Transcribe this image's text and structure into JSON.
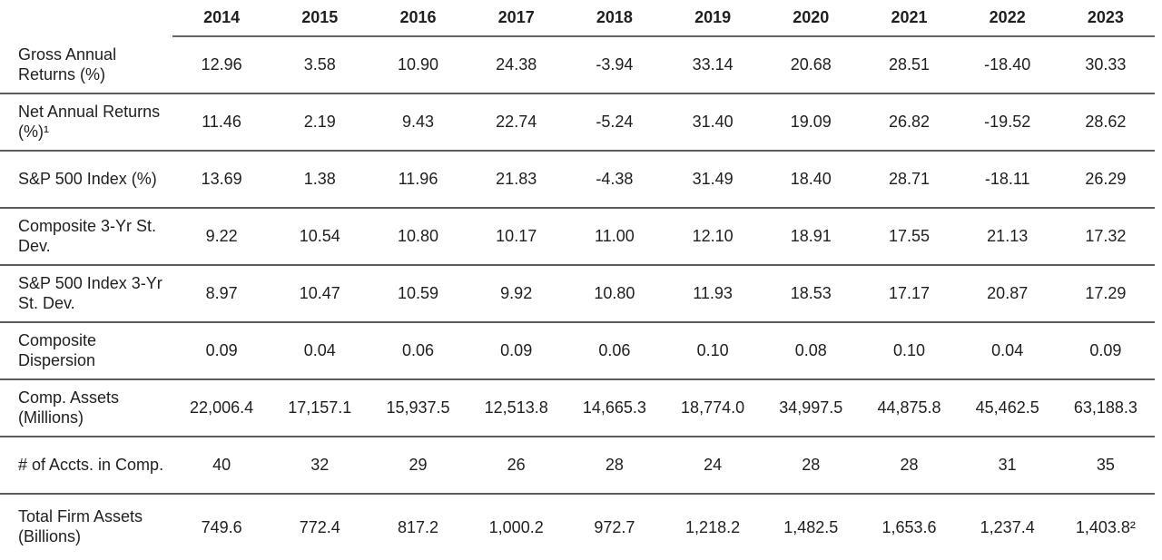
{
  "colors": {
    "text": "#1f1f1f",
    "line": "#5c5c5c",
    "background": "#ffffff"
  },
  "table": {
    "columns": [
      "2014",
      "2015",
      "2016",
      "2017",
      "2018",
      "2019",
      "2020",
      "2021",
      "2022",
      "2023"
    ],
    "rows": [
      {
        "label": "Gross Annual Returns (%)",
        "values": [
          "12.96",
          "3.58",
          "10.90",
          "24.38",
          "-3.94",
          "33.14",
          "20.68",
          "28.51",
          "-18.40",
          "30.33"
        ]
      },
      {
        "label": "Net Annual Returns (%)¹",
        "values": [
          "11.46",
          "2.19",
          "9.43",
          "22.74",
          "-5.24",
          "31.40",
          "19.09",
          "26.82",
          "-19.52",
          "28.62"
        ]
      },
      {
        "label": "S&P 500 Index (%)",
        "values": [
          "13.69",
          "1.38",
          "11.96",
          "21.83",
          "-4.38",
          "31.49",
          "18.40",
          "28.71",
          "-18.11",
          "26.29"
        ]
      },
      {
        "label": "Composite 3-Yr St. Dev.",
        "values": [
          "9.22",
          "10.54",
          "10.80",
          "10.17",
          "11.00",
          "12.10",
          "18.91",
          "17.55",
          "21.13",
          "17.32"
        ]
      },
      {
        "label": "S&P 500 Index 3-Yr St. Dev.",
        "values": [
          "8.97",
          "10.47",
          "10.59",
          "9.92",
          "10.80",
          "11.93",
          "18.53",
          "17.17",
          "20.87",
          "17.29"
        ]
      },
      {
        "label": "Composite Dispersion",
        "values": [
          "0.09",
          "0.04",
          "0.06",
          "0.09",
          "0.06",
          "0.10",
          "0.08",
          "0.10",
          "0.04",
          "0.09"
        ]
      },
      {
        "label": "Comp. Assets (Millions)",
        "values": [
          "22,006.4",
          "17,157.1",
          "15,937.5",
          "12,513.8",
          "14,665.3",
          "18,774.0",
          "34,997.5",
          "44,875.8",
          "45,462.5",
          "63,188.3"
        ]
      },
      {
        "label": "# of Accts. in Comp.",
        "values": [
          "40",
          "32",
          "29",
          "26",
          "28",
          "24",
          "28",
          "28",
          "31",
          "35"
        ]
      },
      {
        "label": "Total Firm Assets (Billions)",
        "values": [
          "749.6",
          "772.4",
          "817.2",
          "1,000.2",
          "972.7",
          "1,218.2",
          "1,482.5",
          "1,653.6",
          "1,237.4",
          "1,403.8²"
        ]
      }
    ]
  },
  "chart_data": {
    "type": "table",
    "title": "",
    "categories": [
      "2014",
      "2015",
      "2016",
      "2017",
      "2018",
      "2019",
      "2020",
      "2021",
      "2022",
      "2023"
    ],
    "series": [
      {
        "name": "Gross Annual Returns (%)",
        "values": [
          12.96,
          3.58,
          10.9,
          24.38,
          -3.94,
          33.14,
          20.68,
          28.51,
          -18.4,
          30.33
        ]
      },
      {
        "name": "Net Annual Returns (%)",
        "values": [
          11.46,
          2.19,
          9.43,
          22.74,
          -5.24,
          31.4,
          19.09,
          26.82,
          -19.52,
          28.62
        ]
      },
      {
        "name": "S&P 500 Index (%)",
        "values": [
          13.69,
          1.38,
          11.96,
          21.83,
          -4.38,
          31.49,
          18.4,
          28.71,
          -18.11,
          26.29
        ]
      },
      {
        "name": "Composite 3-Yr St. Dev.",
        "values": [
          9.22,
          10.54,
          10.8,
          10.17,
          11.0,
          12.1,
          18.91,
          17.55,
          21.13,
          17.32
        ]
      },
      {
        "name": "S&P 500 Index 3-Yr St. Dev.",
        "values": [
          8.97,
          10.47,
          10.59,
          9.92,
          10.8,
          11.93,
          18.53,
          17.17,
          20.87,
          17.29
        ]
      },
      {
        "name": "Composite Dispersion",
        "values": [
          0.09,
          0.04,
          0.06,
          0.09,
          0.06,
          0.1,
          0.08,
          0.1,
          0.04,
          0.09
        ]
      },
      {
        "name": "Comp. Assets (Millions)",
        "values": [
          22006.4,
          17157.1,
          15937.5,
          12513.8,
          14665.3,
          18774.0,
          34997.5,
          44875.8,
          45462.5,
          63188.3
        ]
      },
      {
        "name": "# of Accts. in Comp.",
        "values": [
          40,
          32,
          29,
          26,
          28,
          24,
          28,
          28,
          31,
          35
        ]
      },
      {
        "name": "Total Firm Assets (Billions)",
        "values": [
          749.6,
          772.4,
          817.2,
          1000.2,
          972.7,
          1218.2,
          1482.5,
          1653.6,
          1237.4,
          1403.8
        ]
      }
    ]
  }
}
